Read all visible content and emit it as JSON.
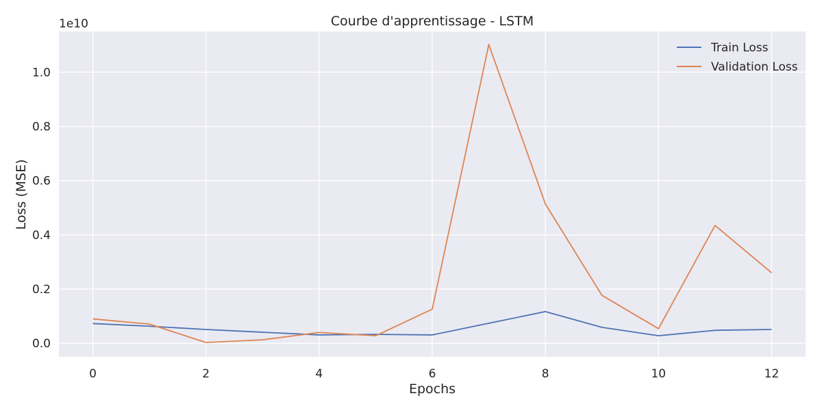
{
  "chart_data": {
    "type": "line",
    "title": "Courbe d'apprentissage - LSTM",
    "xlabel": "Epochs",
    "ylabel": "Loss (MSE)",
    "y_scale_note": "1e10",
    "x": [
      0,
      1,
      2,
      3,
      4,
      5,
      6,
      7,
      8,
      9,
      10,
      11,
      12
    ],
    "xlim": [
      -0.6,
      12.6
    ],
    "ylim": [
      -0.05,
      1.15
    ],
    "x_ticks": [
      0,
      2,
      4,
      6,
      8,
      10,
      12
    ],
    "x_tick_labels": [
      "0",
      "2",
      "4",
      "6",
      "8",
      "10",
      "12"
    ],
    "y_ticks": [
      0.0,
      0.2,
      0.4,
      0.6,
      0.8,
      1.0
    ],
    "y_tick_labels": [
      "0.0",
      "0.2",
      "0.4",
      "0.6",
      "0.8",
      "1.0"
    ],
    "grid": true,
    "legend_position": "top-right",
    "series": [
      {
        "name": "Train Loss",
        "color": "#4c72b0",
        "values": [
          0.073,
          0.063,
          0.051,
          0.041,
          0.031,
          0.033,
          0.031,
          0.074,
          0.117,
          0.059,
          0.028,
          0.048,
          0.051
        ]
      },
      {
        "name": "Validation Loss",
        "color": "#dd8452",
        "values": [
          0.09,
          0.071,
          0.003,
          0.013,
          0.04,
          0.028,
          0.126,
          1.102,
          0.514,
          0.177,
          0.054,
          0.435,
          0.26
        ]
      }
    ]
  }
}
